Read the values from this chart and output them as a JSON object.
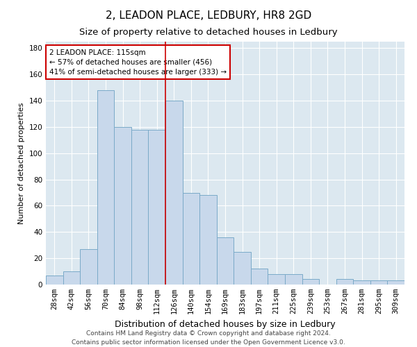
{
  "title1": "2, LEADON PLACE, LEDBURY, HR8 2GD",
  "title2": "Size of property relative to detached houses in Ledbury",
  "xlabel": "Distribution of detached houses by size in Ledbury",
  "ylabel": "Number of detached properties",
  "categories": [
    "28sqm",
    "42sqm",
    "56sqm",
    "70sqm",
    "84sqm",
    "98sqm",
    "112sqm",
    "126sqm",
    "140sqm",
    "154sqm",
    "169sqm",
    "183sqm",
    "197sqm",
    "211sqm",
    "225sqm",
    "239sqm",
    "253sqm",
    "267sqm",
    "281sqm",
    "295sqm",
    "309sqm"
  ],
  "values": [
    7,
    10,
    27,
    148,
    120,
    118,
    118,
    140,
    70,
    68,
    36,
    25,
    12,
    8,
    8,
    4,
    0,
    4,
    3,
    3,
    3
  ],
  "bar_color": "#c8d8eb",
  "bar_edge_color": "#7aaac8",
  "vline_color": "#cc0000",
  "annotation_text": "2 LEADON PLACE: 115sqm\n← 57% of detached houses are smaller (456)\n41% of semi-detached houses are larger (333) →",
  "annotation_box_color": "white",
  "annotation_box_edge_color": "#cc0000",
  "ylim": [
    0,
    185
  ],
  "yticks": [
    0,
    20,
    40,
    60,
    80,
    100,
    120,
    140,
    160,
    180
  ],
  "background_color": "#dce8f0",
  "grid_color": "white",
  "footer": "Contains HM Land Registry data © Crown copyright and database right 2024.\nContains public sector information licensed under the Open Government Licence v3.0.",
  "title1_fontsize": 11,
  "title2_fontsize": 9.5,
  "xlabel_fontsize": 9,
  "ylabel_fontsize": 8,
  "tick_fontsize": 7.5,
  "footer_fontsize": 6.5,
  "vline_xindex": 6.5
}
